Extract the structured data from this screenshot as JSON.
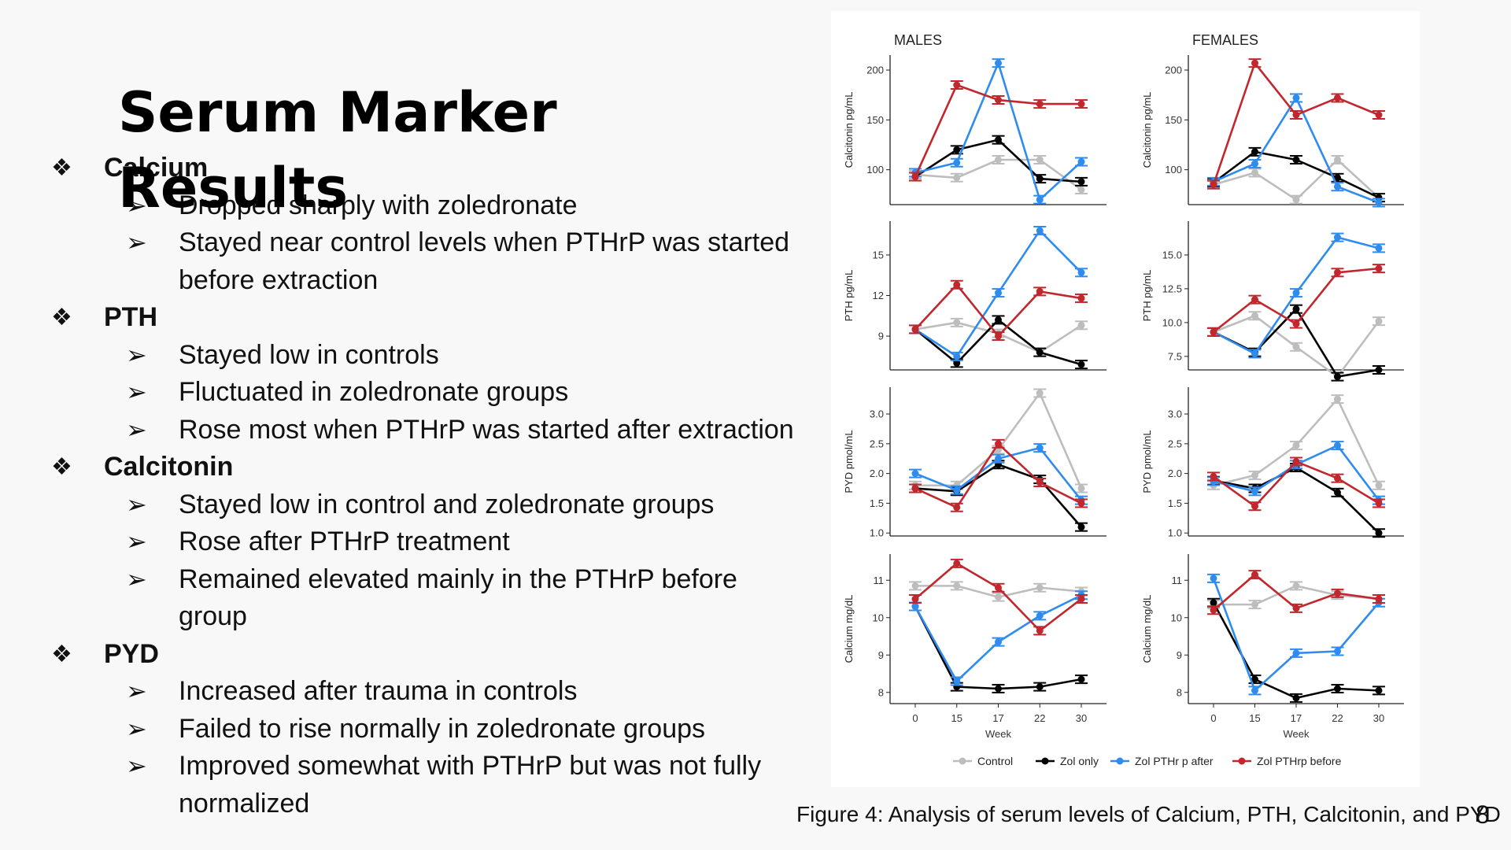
{
  "slide": {
    "title": "Serum Marker Results",
    "caption": "Figure 4: Analysis of serum levels of Calcium, PTH, Calcitonin, and PYD",
    "page_number": "8",
    "sections": [
      {
        "heading": "Calcium",
        "items": [
          "Dropped sharply with zoledronate",
          "Stayed near control levels when PTHrP was started before extraction"
        ]
      },
      {
        "heading": "PTH",
        "items": [
          "Stayed low in controls",
          "Fluctuated in zoledronate groups",
          "Rose most when PTHrP was started after extraction"
        ]
      },
      {
        "heading": "Calcitonin",
        "items": [
          "Stayed low in control and zoledronate groups",
          "Rose after PTHrP treatment",
          "Remained elevated mainly in the PTHrP before group"
        ]
      },
      {
        "heading": "PYD",
        "items": [
          "Increased after trauma in controls",
          "Failed to rise normally in zoledronate groups",
          "Improved somewhat with PTHrP but was not fully normalized"
        ]
      }
    ]
  },
  "chart_data": {
    "type": "line",
    "column_titles": [
      "MALES",
      "FEMALES"
    ],
    "x": [
      "0",
      "15",
      "17",
      "22",
      "30"
    ],
    "xlabel": "Week",
    "legend": {
      "placement": "bottom",
      "series": [
        {
          "name": "Control",
          "color": "#bdbdbd"
        },
        {
          "name": "Zol only",
          "color": "#000000"
        },
        {
          "name": "Zol PTHr p after",
          "color": "#2e8cef"
        },
        {
          "name": "Zol PTHrp before",
          "color": "#c1272d"
        }
      ]
    },
    "rows": [
      {
        "ylabel": "Calcitonin pg/mL",
        "ylim": [
          65,
          215
        ],
        "panels": [
          {
            "yticks": [
              "100",
              "150",
              "200"
            ],
            "yvals": [
              100,
              150,
              200
            ],
            "series": [
              [
                95,
                92,
                110,
                110,
                80
              ],
              [
                93,
                120,
                130,
                91,
                88
              ],
              [
                97,
                107,
                207,
                70,
                108
              ],
              [
                93,
                185,
                170,
                166,
                166
              ]
            ]
          },
          {
            "yticks": [
              "100",
              "150",
              "200"
            ],
            "yvals": [
              100,
              150,
              200
            ],
            "series": [
              [
                85,
                97,
                70,
                110,
                72
              ],
              [
                87,
                118,
                110,
                92,
                72
              ],
              [
                88,
                106,
                172,
                83,
                67
              ],
              [
                85,
                207,
                155,
                172,
                155
              ]
            ]
          }
        ]
      },
      {
        "ylabel": "PTH pg/mL",
        "ylim": [
          6.5,
          17.5
        ],
        "panels": [
          {
            "yticks": [
              "9",
              "12",
              "15"
            ],
            "yvals": [
              9,
              12,
              15
            ],
            "series": [
              [
                9.5,
                10,
                9.2,
                7.8,
                9.8
              ],
              [
                9.5,
                7,
                10.2,
                7.8,
                6.9
              ],
              [
                9.5,
                7.5,
                12.2,
                16.8,
                13.7
              ],
              [
                9.5,
                12.8,
                9,
                12.3,
                11.8
              ]
            ]
          },
          {
            "yticks": [
              "7.5",
              "10.0",
              "12.5",
              "15.0"
            ],
            "yvals": [
              7.5,
              10,
              12.5,
              15
            ],
            "series": [
              [
                9.3,
                10.5,
                8.2,
                6,
                10.1
              ],
              [
                9.3,
                7.8,
                11,
                6,
                6.5
              ],
              [
                9.3,
                7.7,
                12.2,
                16.3,
                15.5
              ],
              [
                9.3,
                11.7,
                9.9,
                13.7,
                14
              ]
            ]
          }
        ]
      },
      {
        "ylabel": "PYD pmol/mL",
        "ylim": [
          0.95,
          3.45
        ],
        "panels": [
          {
            "yticks": [
              "1.0",
              "1.5",
              "2.0",
              "2.5",
              "3.0"
            ],
            "yvals": [
              1,
              1.5,
              2,
              2.5,
              3
            ],
            "series": [
              [
                1.8,
                1.8,
                2.4,
                3.35,
                1.75
              ],
              [
                1.75,
                1.7,
                2.15,
                1.9,
                1.1
              ],
              [
                2,
                1.72,
                2.25,
                2.43,
                1.55
              ],
              [
                1.75,
                1.43,
                2.5,
                1.85,
                1.5
              ]
            ]
          },
          {
            "yticks": [
              "1.0",
              "1.5",
              "2.0",
              "2.5",
              "3.0"
            ],
            "yvals": [
              1,
              1.5,
              2,
              2.5,
              3
            ],
            "series": [
              [
                1.8,
                1.97,
                2.47,
                3.25,
                1.8
              ],
              [
                1.88,
                1.75,
                2.1,
                1.68,
                1
              ],
              [
                1.87,
                1.7,
                2.15,
                2.47,
                1.55
              ],
              [
                1.95,
                1.45,
                2.2,
                1.92,
                1.5
              ]
            ]
          }
        ]
      },
      {
        "ylabel": "Calcium mg/dL",
        "ylim": [
          7.7,
          11.7
        ],
        "panels": [
          {
            "yticks": [
              "8",
              "9",
              "10",
              "11"
            ],
            "yvals": [
              8,
              9,
              10,
              11
            ],
            "series": [
              [
                10.85,
                10.85,
                10.55,
                10.8,
                10.7
              ],
              [
                10.3,
                8.15,
                8.1,
                8.15,
                8.35
              ],
              [
                10.3,
                8.3,
                9.35,
                10.05,
                10.6
              ],
              [
                10.5,
                11.45,
                10.8,
                9.65,
                10.5
              ]
            ]
          },
          {
            "yticks": [
              "8",
              "9",
              "10",
              "11"
            ],
            "yvals": [
              8,
              9,
              10,
              11
            ],
            "series": [
              [
                10.35,
                10.35,
                10.85,
                10.6,
                10.5
              ],
              [
                10.4,
                8.35,
                7.85,
                8.1,
                8.05
              ],
              [
                11.05,
                8.05,
                9.05,
                9.1,
                10.4
              ],
              [
                10.2,
                11.15,
                10.25,
                10.65,
                10.5
              ]
            ]
          }
        ]
      }
    ]
  }
}
